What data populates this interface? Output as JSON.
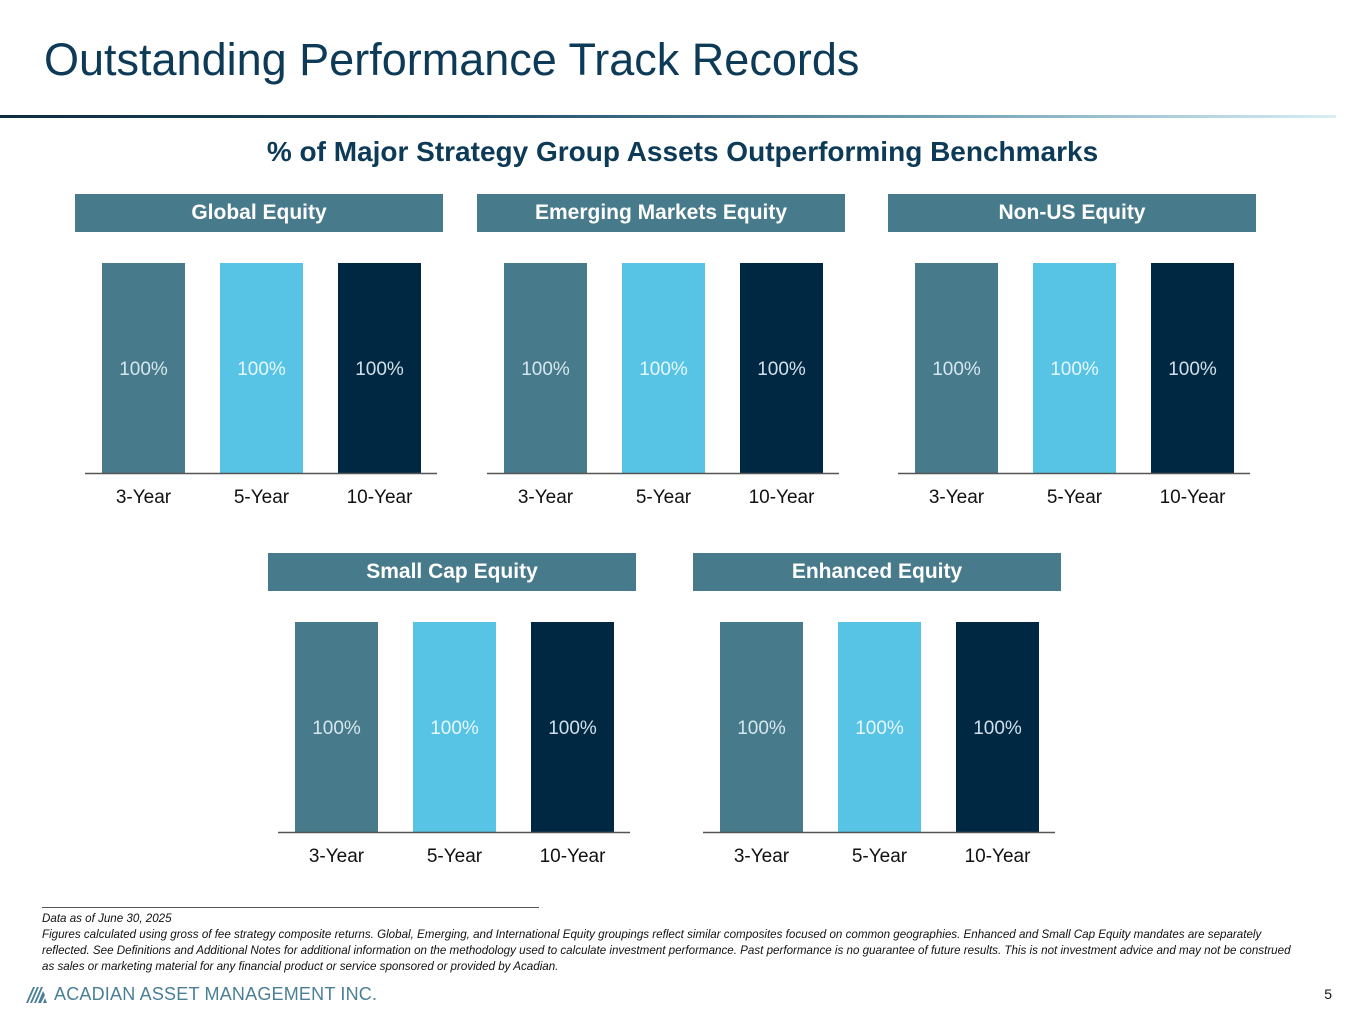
{
  "page": {
    "title": "Outstanding Performance Track Records",
    "subtitle": "% of Major Strategy Group Assets Outperforming Benchmarks",
    "page_number": "5"
  },
  "colors": {
    "header": "#477a8a",
    "bar_3yr": "#477a8a",
    "bar_5yr": "#57c4e5",
    "bar_10yr": "#002842",
    "label_3yr": "#d6e7ee",
    "label_5yr": "#e8f7fd",
    "label_10yr": "#d0e0ea",
    "axis": "#555555",
    "tick_text": "#111111"
  },
  "chart_data": [
    {
      "type": "bar",
      "title": "Global Equity",
      "categories": [
        "3-Year",
        "5-Year",
        "10-Year"
      ],
      "values": [
        100,
        100,
        100
      ],
      "value_labels": [
        "100%",
        "100%",
        "100%"
      ],
      "ylim": [
        0,
        100
      ],
      "grid": false,
      "xlabel": "",
      "ylabel": ""
    },
    {
      "type": "bar",
      "title": "Emerging Markets Equity",
      "categories": [
        "3-Year",
        "5-Year",
        "10-Year"
      ],
      "values": [
        100,
        100,
        100
      ],
      "value_labels": [
        "100%",
        "100%",
        "100%"
      ],
      "ylim": [
        0,
        100
      ],
      "grid": false,
      "xlabel": "",
      "ylabel": ""
    },
    {
      "type": "bar",
      "title": "Non-US Equity",
      "categories": [
        "3-Year",
        "5-Year",
        "10-Year"
      ],
      "values": [
        100,
        100,
        100
      ],
      "value_labels": [
        "100%",
        "100%",
        "100%"
      ],
      "ylim": [
        0,
        100
      ],
      "grid": false,
      "xlabel": "",
      "ylabel": ""
    },
    {
      "type": "bar",
      "title": "Small Cap Equity",
      "categories": [
        "3-Year",
        "5-Year",
        "10-Year"
      ],
      "values": [
        100,
        100,
        100
      ],
      "value_labels": [
        "100%",
        "100%",
        "100%"
      ],
      "ylim": [
        0,
        100
      ],
      "grid": false,
      "xlabel": "",
      "ylabel": ""
    },
    {
      "type": "bar",
      "title": "Enhanced Equity",
      "categories": [
        "3-Year",
        "5-Year",
        "10-Year"
      ],
      "values": [
        100,
        100,
        100
      ],
      "value_labels": [
        "100%",
        "100%",
        "100%"
      ],
      "ylim": [
        0,
        100
      ],
      "grid": false,
      "xlabel": "",
      "ylabel": ""
    }
  ],
  "footnotes": [
    "Data as of June 30, 2025",
    "Figures calculated using gross of fee strategy composite returns. Global, Emerging, and International Equity groupings reflect similar composites focused on common geographies. Enhanced and Small Cap Equity mandates are separately reflected. See Definitions and Additional Notes for additional information on the methodology used to calculate investment performance. Past performance is no guarantee of future results. This is not investment advice and may not be construed as sales or marketing material for any financial product or service sponsored or provided by Acadian."
  ],
  "logo": {
    "text": "ACADIAN ASSET MANAGEMENT INC.",
    "icon": "acadian-logo-icon"
  }
}
